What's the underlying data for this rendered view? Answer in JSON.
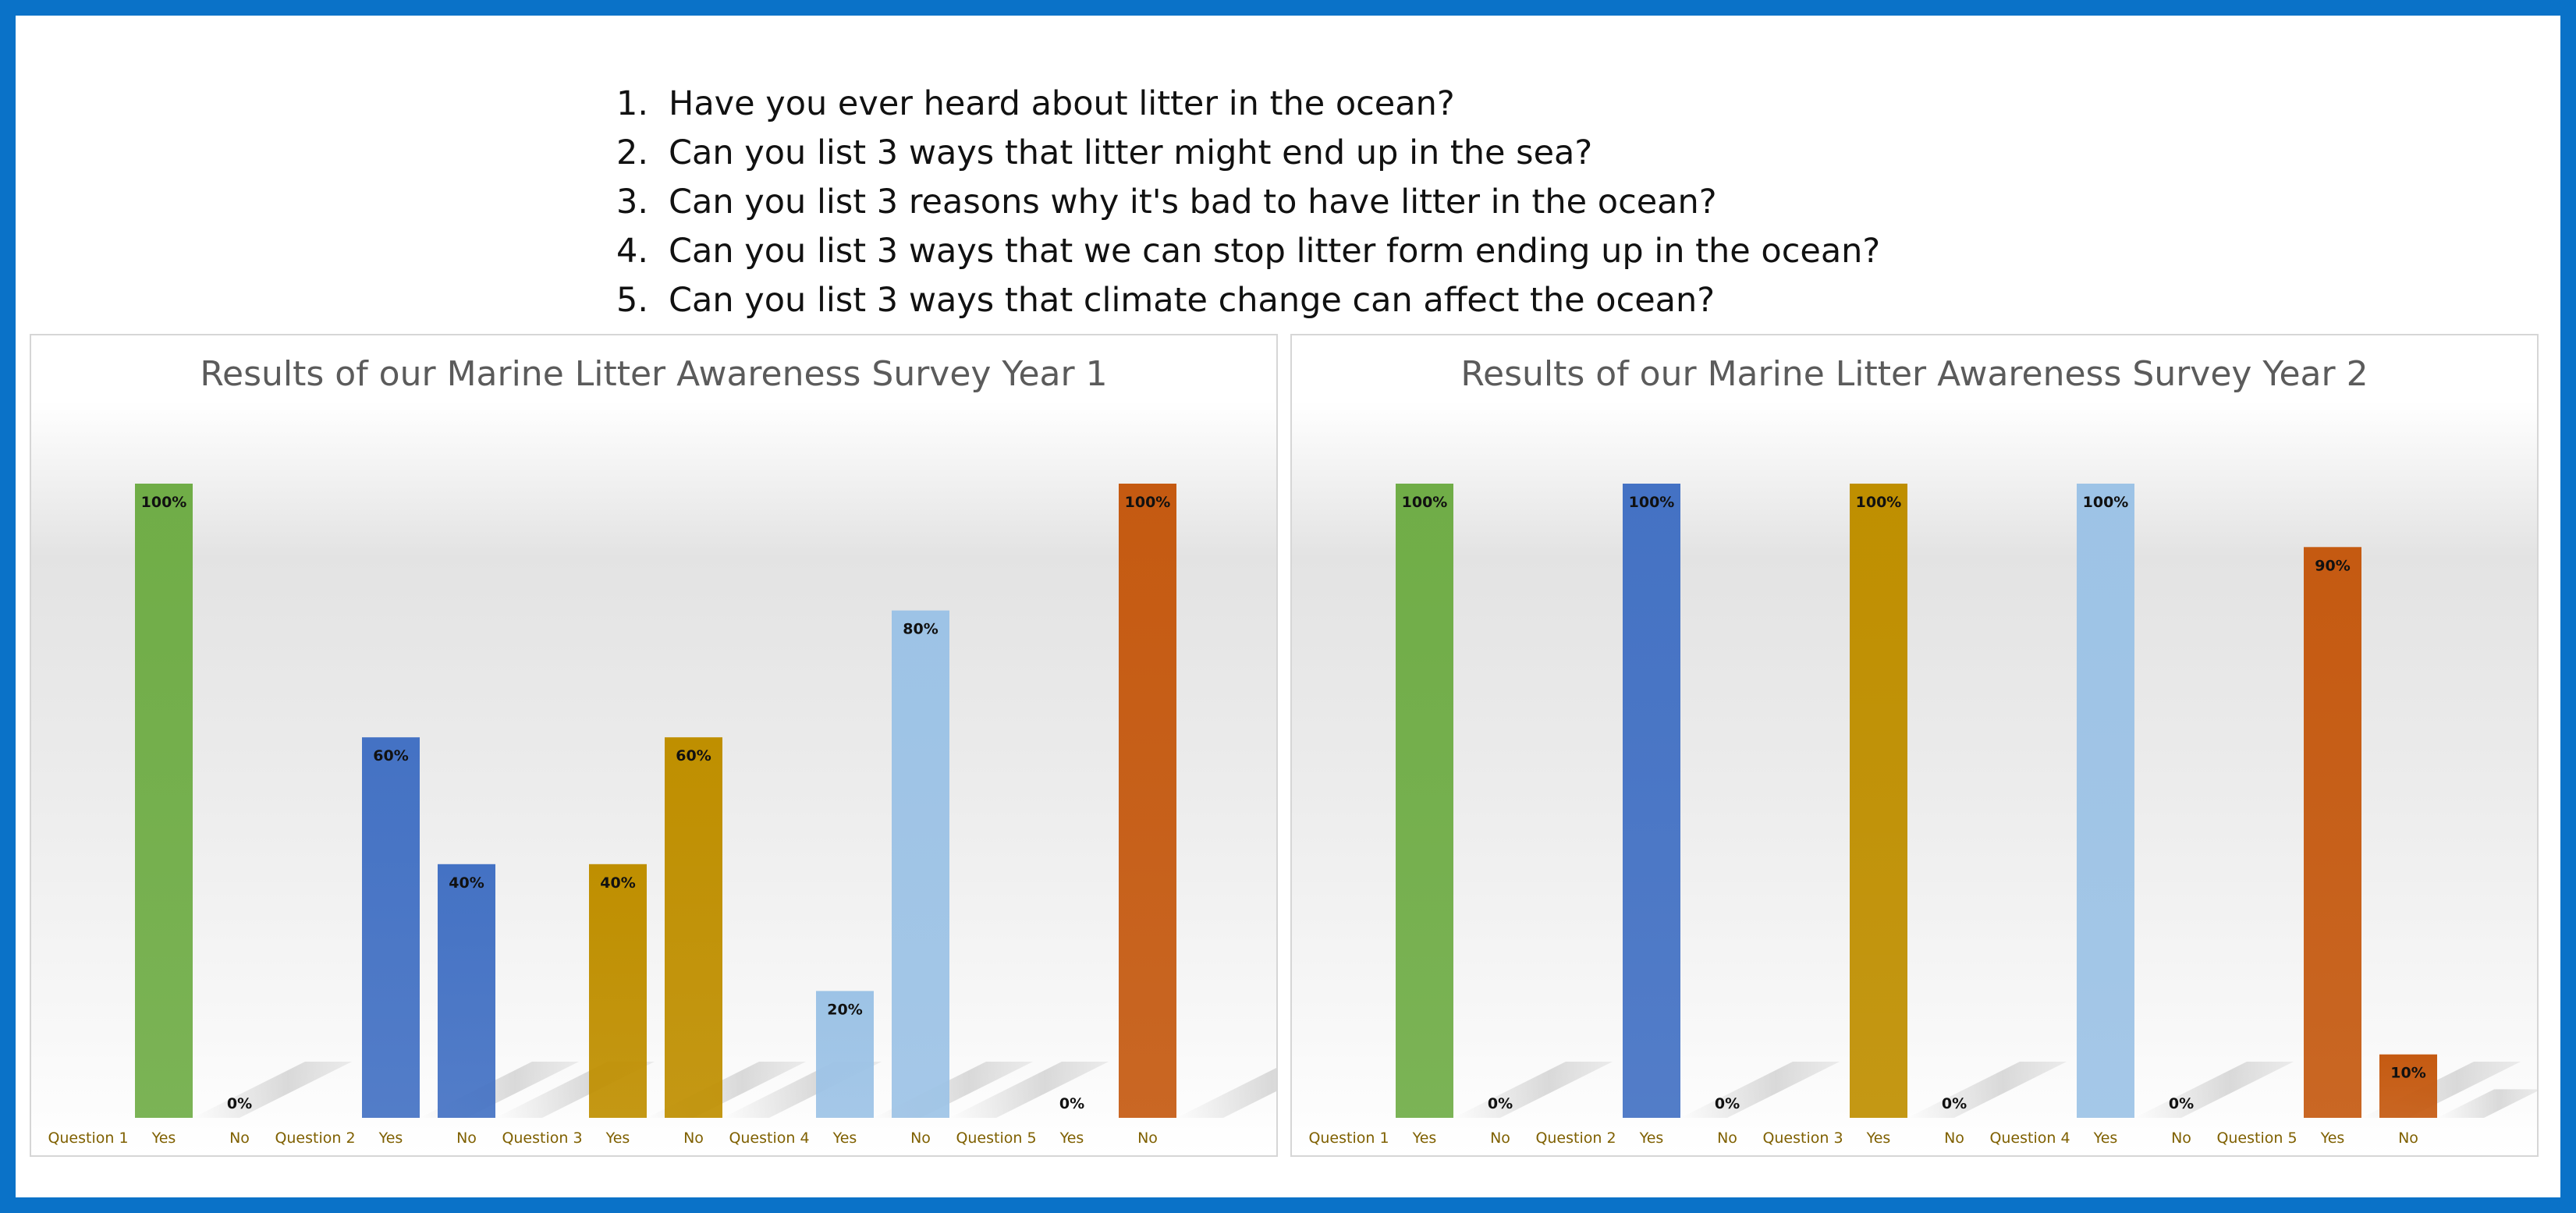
{
  "questions": [
    {
      "num": "1.",
      "text": "Have you ever heard about litter in the ocean?"
    },
    {
      "num": "2.",
      "text": "Can you list 3 ways that litter might end up in the sea?"
    },
    {
      "num": "3.",
      "text": "Can you list 3 reasons why it's bad to have litter in the ocean?"
    },
    {
      "num": "4.",
      "text": "Can you list 3 ways that we can stop litter form ending up in the ocean?"
    },
    {
      "num": "5.",
      "text": "Can you list 3 ways that climate change can affect the ocean?"
    }
  ],
  "colors": {
    "frame": "#0a72c8",
    "title": "#5b5b5b",
    "category_label": "#7f6000"
  },
  "chart_data": [
    {
      "type": "bar",
      "title": "Results of our Marine Litter Awareness Survey Year 1",
      "ylim": [
        0,
        100
      ],
      "grid": false,
      "legend": "none",
      "categories": [
        "Question 1",
        "Yes",
        "No",
        "Question  2",
        "Yes",
        "No",
        "Question 3",
        "Yes",
        "No",
        "Question 4",
        "Yes",
        "No",
        "Question 5",
        "Yes",
        "No"
      ],
      "values": [
        null,
        100,
        0,
        null,
        60,
        40,
        null,
        40,
        60,
        null,
        20,
        80,
        null,
        0,
        100
      ],
      "data_labels": [
        "",
        "100%",
        "0%",
        "",
        "60%",
        "40%",
        "",
        "40%",
        "60%",
        "",
        "20%",
        "80%",
        "",
        "0%",
        "100%"
      ],
      "bar_colors": [
        "#70ad47",
        "#70ad47",
        "#70ad47",
        "#4472c4",
        "#4472c4",
        "#4472c4",
        "#bf8f00",
        "#bf8f00",
        "#bf8f00",
        "#9dc3e6",
        "#9dc3e6",
        "#9dc3e6",
        "#c55a11",
        "#c55a11",
        "#c55a11"
      ]
    },
    {
      "type": "bar",
      "title": "Results of our Marine Litter Awareness Survey Year 2",
      "ylim": [
        0,
        100
      ],
      "grid": false,
      "legend": "none",
      "categories": [
        "Question 1",
        "Yes",
        "No",
        "Question  2",
        "Yes",
        "No",
        "Question 3",
        "Yes",
        "No",
        "Question 4",
        "Yes",
        "No",
        "Question 5",
        "Yes",
        "No"
      ],
      "values": [
        null,
        100,
        0,
        null,
        100,
        0,
        null,
        100,
        0,
        null,
        100,
        0,
        null,
        90,
        10
      ],
      "data_labels": [
        "",
        "100%",
        "0%",
        "",
        "100%",
        "0%",
        "",
        "100%",
        "0%",
        "",
        "100%",
        "0%",
        "",
        "90%",
        "10%"
      ],
      "bar_colors": [
        "#70ad47",
        "#70ad47",
        "#70ad47",
        "#4472c4",
        "#4472c4",
        "#4472c4",
        "#bf8f00",
        "#bf8f00",
        "#bf8f00",
        "#9dc3e6",
        "#9dc3e6",
        "#9dc3e6",
        "#c55a11",
        "#c55a11",
        "#c55a11"
      ]
    }
  ]
}
